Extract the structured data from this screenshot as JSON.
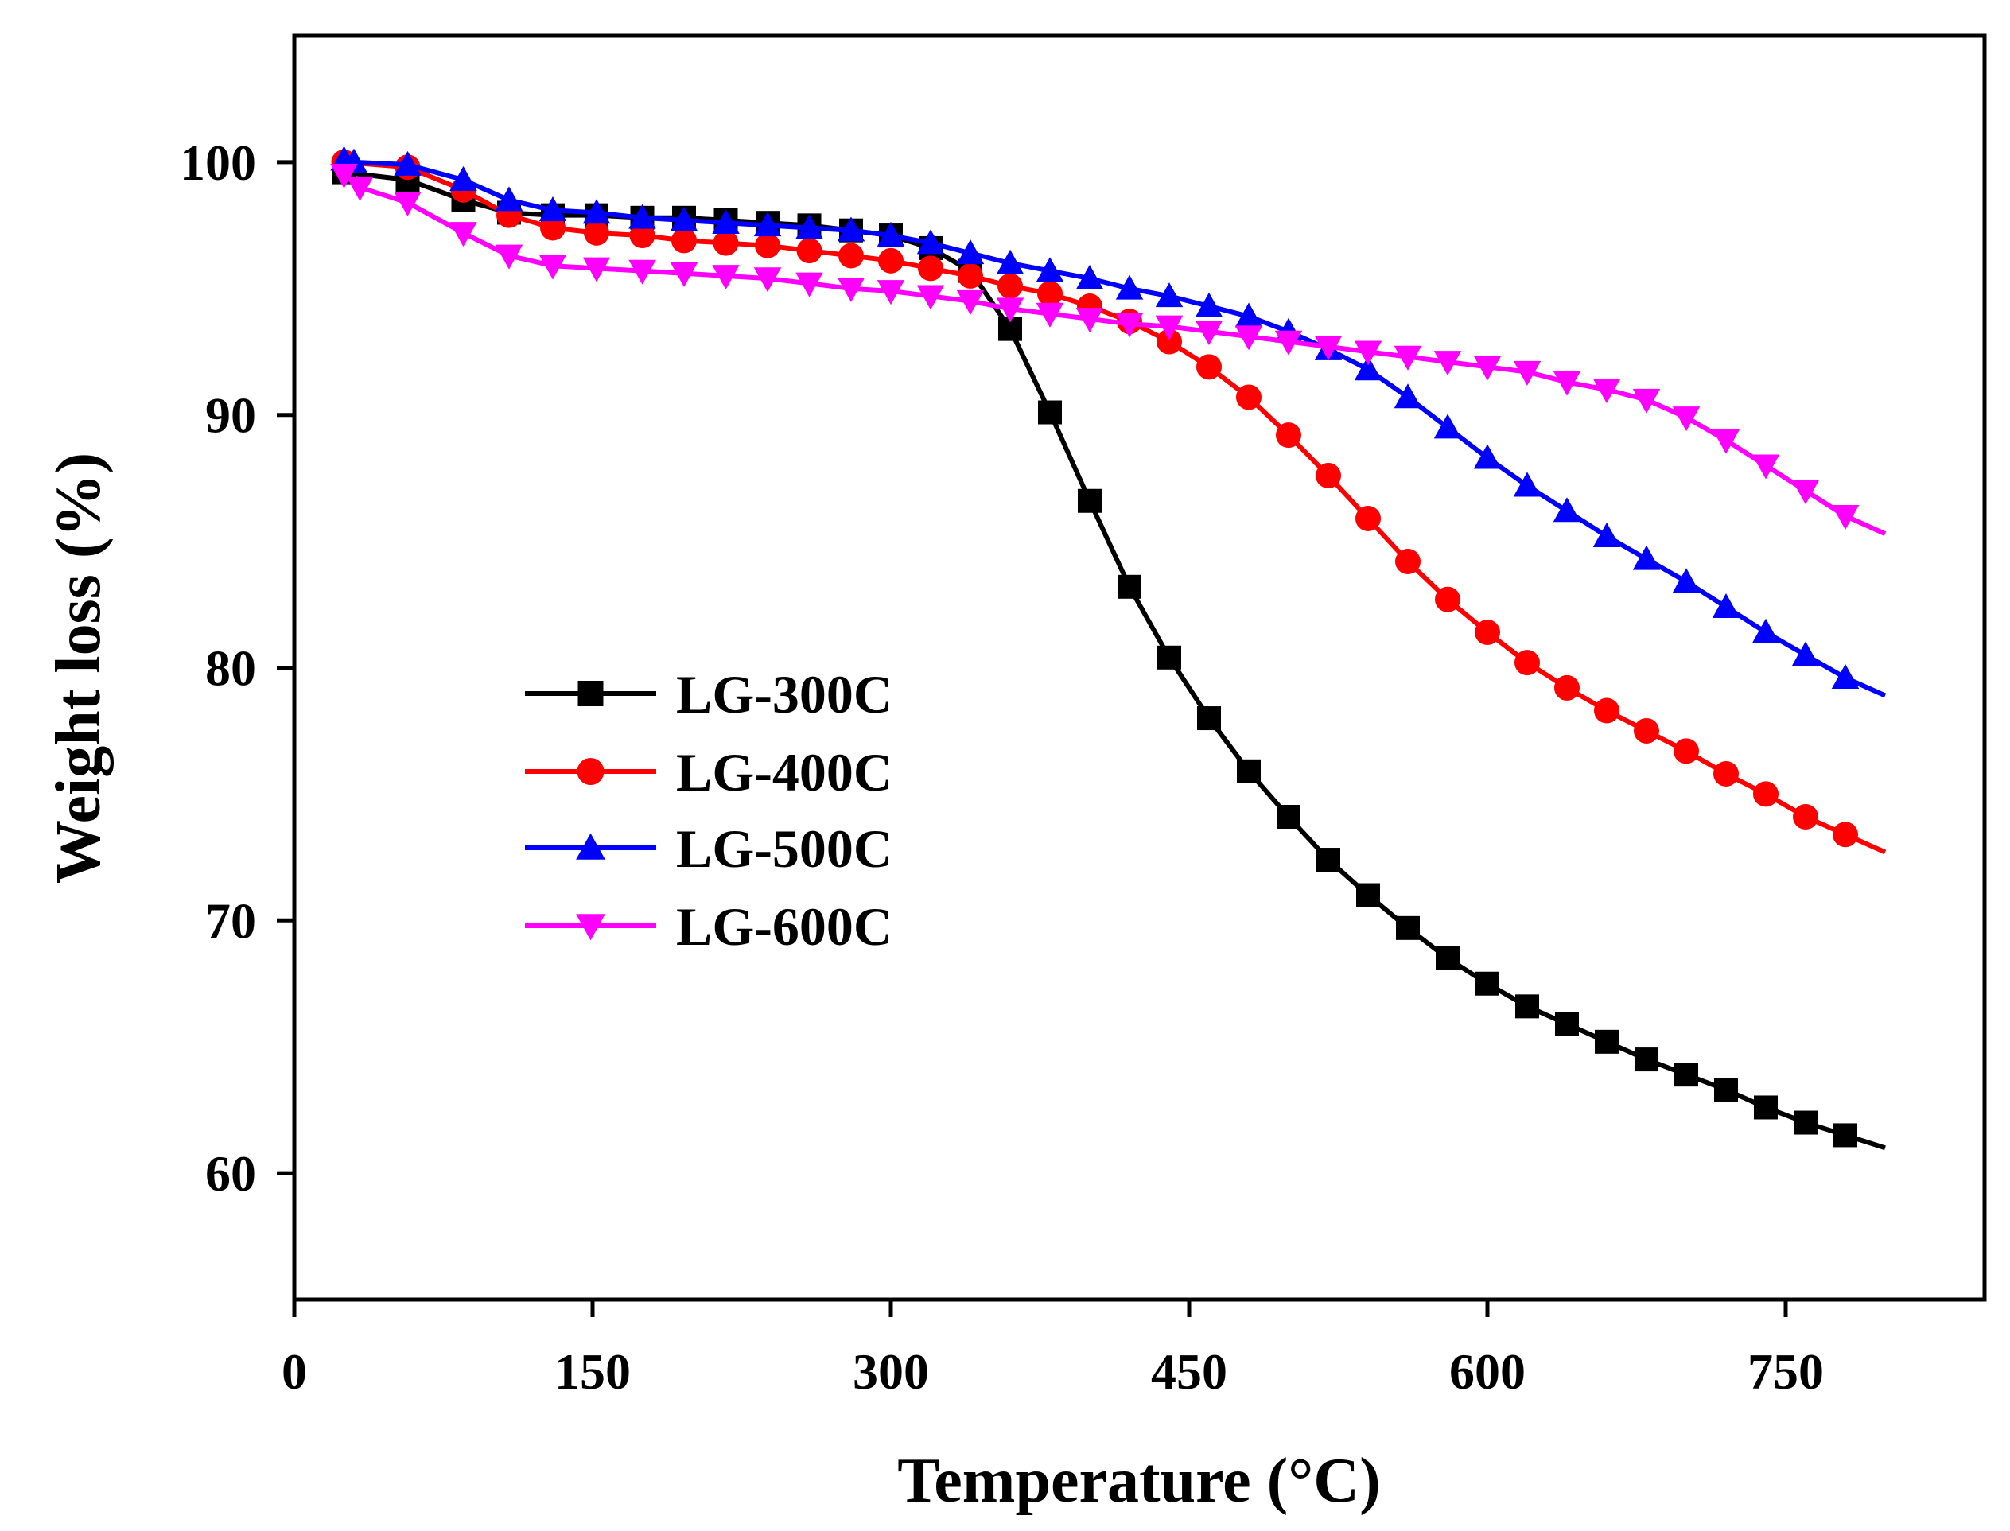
{
  "chart_data": {
    "type": "line",
    "title": "",
    "xlabel": "Temperature (°C)",
    "ylabel": "Weight loss (%)",
    "xlim": [
      0,
      850
    ],
    "ylim": [
      55,
      105
    ],
    "xticks": [
      0,
      150,
      300,
      450,
      600,
      750
    ],
    "yticks": [
      60,
      70,
      80,
      90,
      100
    ],
    "legend_position": "center-left",
    "series": [
      {
        "name": "LG-300C",
        "color": "#000000",
        "marker": "square",
        "points": [
          [
            25,
            99.6
          ],
          [
            57,
            99.3
          ],
          [
            85,
            98.5
          ],
          [
            108,
            98.0
          ],
          [
            130,
            97.9
          ],
          [
            152,
            97.9
          ],
          [
            175,
            97.8
          ],
          [
            196,
            97.8
          ],
          [
            217,
            97.7
          ],
          [
            238,
            97.6
          ],
          [
            259,
            97.5
          ],
          [
            280,
            97.3
          ],
          [
            300,
            97.1
          ],
          [
            320,
            96.6
          ],
          [
            340,
            95.7
          ],
          [
            360,
            93.4
          ],
          [
            380,
            90.1
          ],
          [
            400,
            86.6
          ],
          [
            420,
            83.2
          ],
          [
            440,
            80.4
          ],
          [
            460,
            78.0
          ],
          [
            480,
            75.9
          ],
          [
            500,
            74.1
          ],
          [
            520,
            72.4
          ],
          [
            540,
            71.0
          ],
          [
            560,
            69.7
          ],
          [
            580,
            68.5
          ],
          [
            600,
            67.5
          ],
          [
            620,
            66.6
          ],
          [
            640,
            65.9
          ],
          [
            660,
            65.2
          ],
          [
            680,
            64.5
          ],
          [
            700,
            63.9
          ],
          [
            720,
            63.3
          ],
          [
            740,
            62.6
          ],
          [
            760,
            62.0
          ],
          [
            780,
            61.5
          ],
          [
            800,
            61.0
          ]
        ],
        "marker_points": [
          [
            25,
            99.6
          ],
          [
            57,
            99.3
          ],
          [
            85,
            98.5
          ],
          [
            108,
            98.0
          ],
          [
            130,
            97.9
          ],
          [
            152,
            97.9
          ],
          [
            175,
            97.8
          ],
          [
            196,
            97.8
          ],
          [
            217,
            97.7
          ],
          [
            238,
            97.6
          ],
          [
            259,
            97.5
          ],
          [
            280,
            97.3
          ],
          [
            300,
            97.1
          ],
          [
            320,
            96.6
          ],
          [
            340,
            95.7
          ],
          [
            360,
            93.4
          ],
          [
            380,
            90.1
          ],
          [
            400,
            86.6
          ],
          [
            420,
            83.2
          ],
          [
            440,
            80.4
          ],
          [
            460,
            78.0
          ],
          [
            480,
            75.9
          ],
          [
            500,
            74.1
          ],
          [
            520,
            72.4
          ],
          [
            540,
            71.0
          ],
          [
            560,
            69.7
          ],
          [
            580,
            68.5
          ],
          [
            600,
            67.5
          ],
          [
            620,
            66.6
          ],
          [
            640,
            65.9
          ],
          [
            660,
            65.2
          ],
          [
            680,
            64.5
          ],
          [
            700,
            63.9
          ],
          [
            720,
            63.3
          ],
          [
            740,
            62.6
          ],
          [
            760,
            62.0
          ],
          [
            780,
            61.5
          ]
        ]
      },
      {
        "name": "LG-400C",
        "color": "#ff0000",
        "marker": "circle",
        "points": [
          [
            25,
            100.0
          ],
          [
            57,
            99.8
          ],
          [
            85,
            98.9
          ],
          [
            108,
            97.9
          ],
          [
            130,
            97.4
          ],
          [
            152,
            97.2
          ],
          [
            175,
            97.1
          ],
          [
            196,
            96.9
          ],
          [
            217,
            96.8
          ],
          [
            238,
            96.7
          ],
          [
            259,
            96.5
          ],
          [
            280,
            96.3
          ],
          [
            300,
            96.1
          ],
          [
            320,
            95.8
          ],
          [
            340,
            95.5
          ],
          [
            360,
            95.1
          ],
          [
            380,
            94.8
          ],
          [
            400,
            94.3
          ],
          [
            420,
            93.7
          ],
          [
            440,
            92.9
          ],
          [
            460,
            91.9
          ],
          [
            480,
            90.7
          ],
          [
            500,
            89.2
          ],
          [
            520,
            87.6
          ],
          [
            540,
            85.9
          ],
          [
            560,
            84.2
          ],
          [
            580,
            82.7
          ],
          [
            600,
            81.4
          ],
          [
            620,
            80.2
          ],
          [
            640,
            79.2
          ],
          [
            660,
            78.3
          ],
          [
            680,
            77.5
          ],
          [
            700,
            76.7
          ],
          [
            720,
            75.8
          ],
          [
            740,
            75.0
          ],
          [
            760,
            74.1
          ],
          [
            780,
            73.4
          ],
          [
            800,
            72.7
          ]
        ],
        "marker_points": [
          [
            25,
            100.0
          ],
          [
            57,
            99.8
          ],
          [
            85,
            98.9
          ],
          [
            108,
            97.9
          ],
          [
            130,
            97.4
          ],
          [
            152,
            97.2
          ],
          [
            175,
            97.1
          ],
          [
            196,
            96.9
          ],
          [
            217,
            96.8
          ],
          [
            238,
            96.7
          ],
          [
            259,
            96.5
          ],
          [
            280,
            96.3
          ],
          [
            300,
            96.1
          ],
          [
            320,
            95.8
          ],
          [
            340,
            95.5
          ],
          [
            360,
            95.1
          ],
          [
            380,
            94.8
          ],
          [
            400,
            94.3
          ],
          [
            420,
            93.7
          ],
          [
            440,
            92.9
          ],
          [
            460,
            91.9
          ],
          [
            480,
            90.7
          ],
          [
            500,
            89.2
          ],
          [
            520,
            87.6
          ],
          [
            540,
            85.9
          ],
          [
            560,
            84.2
          ],
          [
            580,
            82.7
          ],
          [
            600,
            81.4
          ],
          [
            620,
            80.2
          ],
          [
            640,
            79.2
          ],
          [
            660,
            78.3
          ],
          [
            680,
            77.5
          ],
          [
            700,
            76.7
          ],
          [
            720,
            75.8
          ],
          [
            740,
            75.0
          ],
          [
            760,
            74.1
          ],
          [
            780,
            73.4
          ]
        ]
      },
      {
        "name": "LG-500C",
        "color": "#0000ff",
        "marker": "triangle-up",
        "points": [
          [
            25,
            100.1
          ],
          [
            30,
            100.0
          ],
          [
            57,
            99.9
          ],
          [
            85,
            99.3
          ],
          [
            108,
            98.5
          ],
          [
            130,
            98.1
          ],
          [
            152,
            98.0
          ],
          [
            175,
            97.8
          ],
          [
            196,
            97.7
          ],
          [
            217,
            97.6
          ],
          [
            238,
            97.5
          ],
          [
            259,
            97.4
          ],
          [
            280,
            97.3
          ],
          [
            300,
            97.1
          ],
          [
            320,
            96.8
          ],
          [
            340,
            96.4
          ],
          [
            360,
            96.0
          ],
          [
            380,
            95.7
          ],
          [
            400,
            95.4
          ],
          [
            420,
            95.0
          ],
          [
            440,
            94.7
          ],
          [
            460,
            94.3
          ],
          [
            480,
            93.9
          ],
          [
            500,
            93.3
          ],
          [
            520,
            92.6
          ],
          [
            540,
            91.8
          ],
          [
            560,
            90.7
          ],
          [
            580,
            89.5
          ],
          [
            600,
            88.3
          ],
          [
            620,
            87.2
          ],
          [
            640,
            86.2
          ],
          [
            660,
            85.2
          ],
          [
            680,
            84.3
          ],
          [
            700,
            83.4
          ],
          [
            720,
            82.4
          ],
          [
            740,
            81.4
          ],
          [
            760,
            80.5
          ],
          [
            780,
            79.6
          ],
          [
            800,
            78.9
          ]
        ],
        "marker_points": [
          [
            25,
            100.1
          ],
          [
            30,
            100.0
          ],
          [
            57,
            99.9
          ],
          [
            85,
            99.3
          ],
          [
            108,
            98.5
          ],
          [
            130,
            98.1
          ],
          [
            152,
            98.0
          ],
          [
            175,
            97.8
          ],
          [
            196,
            97.7
          ],
          [
            217,
            97.6
          ],
          [
            238,
            97.5
          ],
          [
            259,
            97.4
          ],
          [
            280,
            97.3
          ],
          [
            300,
            97.1
          ],
          [
            320,
            96.8
          ],
          [
            340,
            96.4
          ],
          [
            360,
            96.0
          ],
          [
            380,
            95.7
          ],
          [
            400,
            95.4
          ],
          [
            420,
            95.0
          ],
          [
            440,
            94.7
          ],
          [
            460,
            94.3
          ],
          [
            480,
            93.9
          ],
          [
            500,
            93.3
          ],
          [
            520,
            92.6
          ],
          [
            540,
            91.8
          ],
          [
            560,
            90.7
          ],
          [
            580,
            89.5
          ],
          [
            600,
            88.3
          ],
          [
            620,
            87.2
          ],
          [
            640,
            86.2
          ],
          [
            660,
            85.2
          ],
          [
            680,
            84.3
          ],
          [
            700,
            83.4
          ],
          [
            720,
            82.4
          ],
          [
            740,
            81.4
          ],
          [
            760,
            80.5
          ],
          [
            780,
            79.6
          ]
        ]
      },
      {
        "name": "LG-600C",
        "color": "#ff00ff",
        "marker": "triangle-down",
        "points": [
          [
            25,
            99.5
          ],
          [
            33,
            99.0
          ],
          [
            57,
            98.4
          ],
          [
            85,
            97.2
          ],
          [
            108,
            96.3
          ],
          [
            130,
            95.9
          ],
          [
            152,
            95.8
          ],
          [
            175,
            95.7
          ],
          [
            196,
            95.6
          ],
          [
            217,
            95.5
          ],
          [
            238,
            95.4
          ],
          [
            259,
            95.2
          ],
          [
            280,
            95.0
          ],
          [
            300,
            94.9
          ],
          [
            320,
            94.7
          ],
          [
            340,
            94.5
          ],
          [
            360,
            94.2
          ],
          [
            380,
            94.0
          ],
          [
            400,
            93.8
          ],
          [
            420,
            93.6
          ],
          [
            440,
            93.5
          ],
          [
            460,
            93.3
          ],
          [
            480,
            93.1
          ],
          [
            500,
            92.9
          ],
          [
            520,
            92.7
          ],
          [
            540,
            92.5
          ],
          [
            560,
            92.3
          ],
          [
            580,
            92.1
          ],
          [
            600,
            91.9
          ],
          [
            620,
            91.7
          ],
          [
            640,
            91.3
          ],
          [
            660,
            91.0
          ],
          [
            680,
            90.6
          ],
          [
            700,
            89.9
          ],
          [
            720,
            89.0
          ],
          [
            740,
            88.0
          ],
          [
            760,
            87.0
          ],
          [
            780,
            86.0
          ],
          [
            800,
            85.3
          ]
        ],
        "marker_points": [
          [
            25,
            99.5
          ],
          [
            33,
            99.0
          ],
          [
            57,
            98.4
          ],
          [
            85,
            97.2
          ],
          [
            108,
            96.3
          ],
          [
            130,
            95.9
          ],
          [
            152,
            95.8
          ],
          [
            175,
            95.7
          ],
          [
            196,
            95.6
          ],
          [
            217,
            95.5
          ],
          [
            238,
            95.4
          ],
          [
            259,
            95.2
          ],
          [
            280,
            95.0
          ],
          [
            300,
            94.9
          ],
          [
            320,
            94.7
          ],
          [
            340,
            94.5
          ],
          [
            360,
            94.2
          ],
          [
            380,
            94.0
          ],
          [
            400,
            93.8
          ],
          [
            420,
            93.6
          ],
          [
            440,
            93.5
          ],
          [
            460,
            93.3
          ],
          [
            480,
            93.1
          ],
          [
            500,
            92.9
          ],
          [
            520,
            92.7
          ],
          [
            540,
            92.5
          ],
          [
            560,
            92.3
          ],
          [
            580,
            92.1
          ],
          [
            600,
            91.9
          ],
          [
            620,
            91.7
          ],
          [
            640,
            91.3
          ],
          [
            660,
            91.0
          ],
          [
            680,
            90.6
          ],
          [
            700,
            89.9
          ],
          [
            720,
            89.0
          ],
          [
            740,
            88.0
          ],
          [
            760,
            87.0
          ],
          [
            780,
            86.0
          ]
        ]
      }
    ]
  }
}
